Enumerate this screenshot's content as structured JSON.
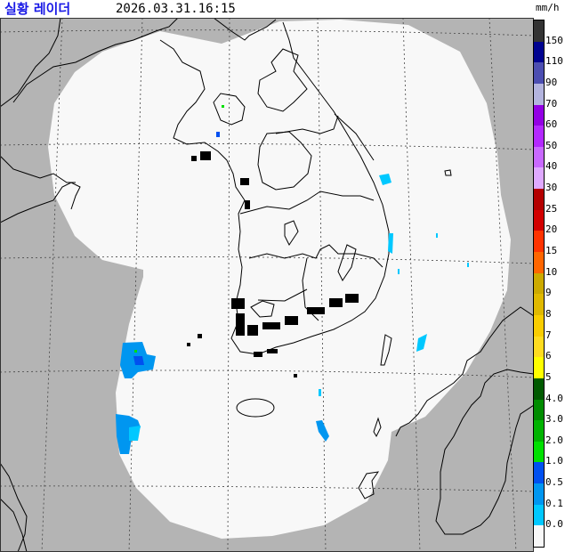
{
  "header": {
    "title": "실황 레이더",
    "timestamp": "2026.03.31.16:15",
    "unit": "mm/h"
  },
  "legend": {
    "labels": [
      "150",
      "110",
      "90",
      "70",
      "60",
      "50",
      "40",
      "30",
      "25",
      "20",
      "15",
      "10",
      "9",
      "8",
      "7",
      "6",
      "5",
      "4.0",
      "3.0",
      "2.0",
      "1.0",
      "0.5",
      "0.1",
      "0.0"
    ],
    "colors": [
      "#333333",
      "#000390",
      "#4c4eb1",
      "#b3b4de",
      "#9300e4",
      "#b329ff",
      "#c969ff",
      "#dfa9ff",
      "#b40000",
      "#d20000",
      "#ff3300",
      "#ff6600",
      "#ccaa00",
      "#e0b900",
      "#f9cd00",
      "#ffdc1f",
      "#ffff00",
      "#005a00",
      "#008c00",
      "#00b300",
      "#00e000",
      "#0050f0",
      "#0096f0",
      "#00c8ff",
      "#f8f8f8"
    ]
  },
  "map": {
    "outside_coverage_color": "#b4b4b4",
    "coverage_color": "#f8f8f8",
    "precip_colors": [
      "#0096f0",
      "#00c8ff",
      "#0050f0"
    ]
  }
}
